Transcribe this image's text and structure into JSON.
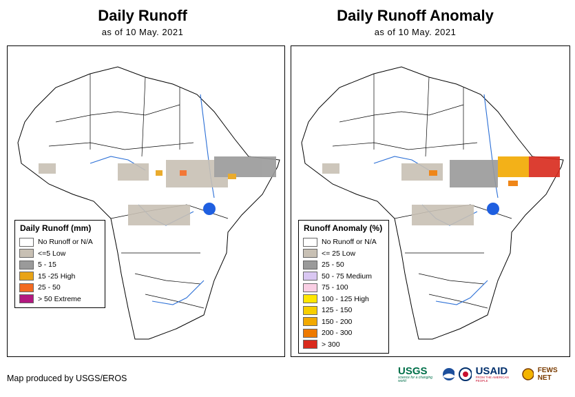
{
  "left_panel": {
    "title": "Daily Runoff",
    "subtitle": "as of 10 May. 2021",
    "legend_title": "Daily Runoff (mm)",
    "legend": [
      {
        "label": "No Runoff or N/A",
        "color": "#ffffff"
      },
      {
        "label": "<=5 Low",
        "color": "#c8c0b4"
      },
      {
        "label": "5 - 15",
        "color": "#9a9a9a"
      },
      {
        "label": "15 -25 High",
        "color": "#e8a317"
      },
      {
        "label": "25 - 50",
        "color": "#f26a22"
      },
      {
        "label": "> 50 Extreme",
        "color": "#b2187f"
      }
    ]
  },
  "right_panel": {
    "title": "Daily Runoff Anomaly",
    "subtitle": "as of 10 May. 2021",
    "legend_title": "Runoff Anomaly (%)",
    "legend": [
      {
        "label": "No Runoff or N/A",
        "color": "#ffffff"
      },
      {
        "label": "<= 25 Low",
        "color": "#c8c0b4"
      },
      {
        "label": "25 - 50",
        "color": "#9a9a9a"
      },
      {
        "label": "50 - 75 Medium",
        "color": "#d9c7f2"
      },
      {
        "label": "75 - 100",
        "color": "#f9cfe4"
      },
      {
        "label": "100 - 125 High",
        "color": "#ffe600"
      },
      {
        "label": "125 - 150",
        "color": "#f7cf00"
      },
      {
        "label": "150 - 200",
        "color": "#f2a900"
      },
      {
        "label": "200 - 300",
        "color": "#ee7a00"
      },
      {
        "label": "> 300",
        "color": "#d92a1c"
      }
    ]
  },
  "footer": {
    "credit": "Map produced by USGS/EROS"
  },
  "logos": {
    "usgs": "USGS",
    "usgs_tagline": "science for a changing world",
    "usaid": "USAID",
    "usaid_tagline": "FROM THE AMERICAN PEOPLE",
    "fewsnet": "FEWS NET"
  },
  "colors": {
    "river": "#2b6fd6",
    "lake": "#1f5fe0",
    "land": "#ffffff",
    "border": "#000000"
  }
}
